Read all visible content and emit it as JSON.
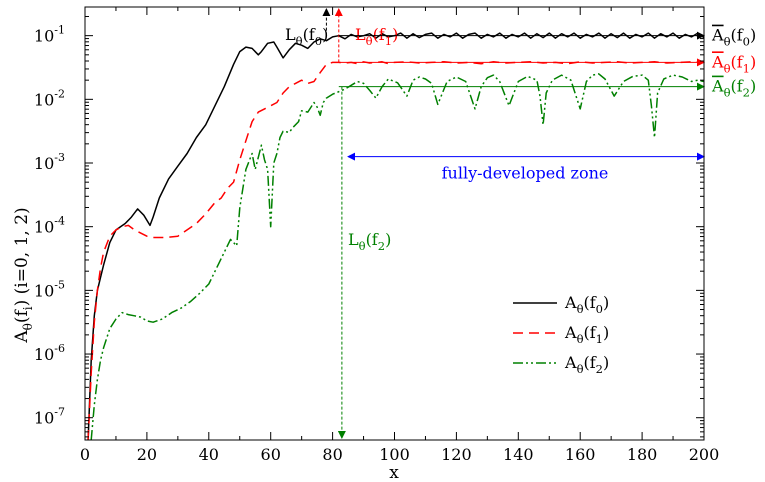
{
  "chart_data": {
    "type": "line",
    "xlabel": "x",
    "ylabel": "A_θ(f_i) (i=0, 1, 2)",
    "xlim": [
      0,
      200
    ],
    "ylim_log10": [
      -7.35,
      -0.55
    ],
    "y_scale": "log",
    "grid": false,
    "legend_position": "lower-right",
    "x_ticks": [
      0,
      20,
      40,
      60,
      80,
      100,
      120,
      140,
      160,
      180,
      200
    ],
    "y_ticks": [
      {
        "exp": -1,
        "label": "10",
        "sup": "-1"
      },
      {
        "exp": -2,
        "label": "10",
        "sup": "-2"
      },
      {
        "exp": -3,
        "label": "10",
        "sup": "-3"
      },
      {
        "exp": -4,
        "label": "10",
        "sup": "-4"
      },
      {
        "exp": -5,
        "label": "10",
        "sup": "-5"
      },
      {
        "exp": -6,
        "label": "10",
        "sup": "-6"
      },
      {
        "exp": -7,
        "label": "10",
        "sup": "-7"
      }
    ],
    "series": [
      {
        "name": "A_θ(f_0)",
        "color": "#000000",
        "dash": "solid",
        "x": [
          1,
          2,
          3,
          4,
          5,
          6,
          8,
          10,
          13,
          15,
          17,
          19,
          21,
          22,
          24,
          27,
          30,
          33,
          36,
          39,
          42,
          45,
          48,
          50,
          52,
          54,
          56,
          57,
          59,
          61,
          62,
          64,
          66,
          68,
          70,
          72,
          74,
          76,
          78,
          80,
          82,
          84,
          86,
          88,
          90,
          92,
          94,
          96,
          98,
          100,
          102,
          104,
          106,
          108,
          110,
          112,
          114,
          116,
          118,
          120,
          122,
          124,
          126,
          128,
          130,
          132,
          134,
          136,
          138,
          140,
          142,
          144,
          146,
          148,
          150,
          152,
          154,
          156,
          158,
          160,
          162,
          164,
          166,
          168,
          170,
          172,
          174,
          176,
          178,
          180,
          182,
          184,
          186,
          188,
          190,
          192,
          194,
          196,
          198,
          200
        ],
        "y_log10": [
          -7.35,
          -6.1,
          -5.4,
          -5.0,
          -4.8,
          -4.6,
          -4.25,
          -4.05,
          -3.95,
          -3.85,
          -3.72,
          -3.82,
          -3.98,
          -3.85,
          -3.55,
          -3.25,
          -3.05,
          -2.85,
          -2.6,
          -2.4,
          -2.1,
          -1.8,
          -1.45,
          -1.25,
          -1.18,
          -1.2,
          -1.3,
          -1.25,
          -1.12,
          -1.1,
          -1.18,
          -1.35,
          -1.22,
          -1.12,
          -1.15,
          -1.2,
          -1.1,
          -1.05,
          -1.08,
          -1.02,
          -1.0,
          -1.05,
          -0.98,
          -1.02,
          -1.0,
          -0.97,
          -1.04,
          -0.97,
          -1.02,
          -1.0,
          -0.96,
          -1.04,
          -0.97,
          -1.03,
          -0.98,
          -0.96,
          -1.04,
          -0.98,
          -1.02,
          -0.96,
          -1.04,
          -0.98,
          -0.96,
          -1.04,
          -0.98,
          -1.02,
          -0.96,
          -1.04,
          -0.98,
          -1.02,
          -0.96,
          -1.04,
          -0.97,
          -1.03,
          -0.96,
          -1.04,
          -0.97,
          -1.02,
          -0.96,
          -1.04,
          -0.98,
          -1.02,
          -0.96,
          -1.04,
          -0.97,
          -1.03,
          -0.96,
          -1.04,
          -0.98,
          -1.02,
          -0.96,
          -1.04,
          -0.97,
          -1.02,
          -0.96,
          -1.04,
          -0.98,
          -1.02,
          -0.96,
          -1.03
        ]
      },
      {
        "name": "A_θ(f_1)",
        "color": "#ff0000",
        "dash": "10,6",
        "x": [
          1,
          2,
          3,
          4,
          5,
          6,
          8,
          10,
          12,
          14,
          16,
          18,
          20,
          22,
          26,
          30,
          33,
          36,
          39,
          42,
          44,
          46,
          48,
          50,
          52,
          54,
          56,
          58,
          60,
          62,
          64,
          66,
          68,
          70,
          72,
          74,
          76,
          78,
          80,
          82,
          84,
          86,
          88,
          90,
          92,
          94,
          96,
          98,
          100,
          104,
          108,
          112,
          116,
          120,
          124,
          128,
          132,
          136,
          140,
          144,
          148,
          152,
          156,
          160,
          164,
          168,
          172,
          176,
          180,
          184,
          188,
          192,
          196,
          200
        ],
        "y_log10": [
          -7.35,
          -6.3,
          -5.5,
          -5.0,
          -4.65,
          -4.4,
          -4.15,
          -4.05,
          -4.0,
          -3.98,
          -4.05,
          -4.1,
          -4.15,
          -4.17,
          -4.17,
          -4.15,
          -4.05,
          -3.95,
          -3.8,
          -3.62,
          -3.55,
          -3.4,
          -3.3,
          -2.95,
          -2.65,
          -2.35,
          -2.2,
          -2.15,
          -2.1,
          -2.05,
          -1.9,
          -1.8,
          -1.75,
          -1.7,
          -1.75,
          -1.72,
          -1.58,
          -1.45,
          -1.42,
          -1.42,
          -1.43,
          -1.42,
          -1.44,
          -1.41,
          -1.43,
          -1.42,
          -1.41,
          -1.44,
          -1.42,
          -1.41,
          -1.43,
          -1.42,
          -1.41,
          -1.43,
          -1.42,
          -1.44,
          -1.41,
          -1.43,
          -1.42,
          -1.41,
          -1.43,
          -1.42,
          -1.44,
          -1.41,
          -1.43,
          -1.42,
          -1.41,
          -1.43,
          -1.42,
          -1.41,
          -1.43,
          -1.42,
          -1.41,
          -1.42
        ]
      },
      {
        "name": "A_θ(f_2)",
        "color": "#008000",
        "dash": "10,3,2,3,2,3",
        "x": [
          2,
          3,
          4,
          5,
          6,
          8,
          10,
          12,
          14,
          16,
          18,
          20,
          22,
          25,
          28,
          31,
          34,
          37,
          40,
          43,
          45,
          47,
          49,
          50,
          52,
          54,
          55,
          57,
          58,
          59,
          60,
          61,
          62,
          63,
          64,
          66,
          67,
          69,
          70,
          72,
          74,
          75,
          76,
          77,
          78,
          80,
          82,
          84,
          86,
          88,
          90,
          92,
          94,
          96,
          98,
          101,
          104,
          106,
          108,
          110,
          112,
          114,
          117,
          120,
          123,
          126,
          128,
          130,
          132,
          134,
          137,
          140,
          143,
          146,
          147,
          148,
          149,
          151,
          154,
          157,
          160,
          162,
          164,
          166,
          168,
          171,
          174,
          177,
          180,
          182,
          183,
          184,
          185,
          187,
          190,
          193,
          196,
          198,
          200
        ],
        "y_log10": [
          -7.35,
          -6.8,
          -6.4,
          -6.1,
          -5.9,
          -5.6,
          -5.45,
          -5.35,
          -5.38,
          -5.4,
          -5.42,
          -5.48,
          -5.5,
          -5.45,
          -5.35,
          -5.28,
          -5.18,
          -5.05,
          -4.9,
          -4.6,
          -4.4,
          -4.2,
          -4.3,
          -3.7,
          -3.1,
          -2.85,
          -3.1,
          -2.72,
          -2.95,
          -3.1,
          -4.0,
          -3.0,
          -2.85,
          -2.6,
          -2.5,
          -2.52,
          -2.45,
          -2.35,
          -2.18,
          -2.2,
          -2.05,
          -2.12,
          -2.25,
          -2.05,
          -1.98,
          -1.92,
          -1.88,
          -1.84,
          -1.78,
          -1.72,
          -1.75,
          -1.86,
          -1.98,
          -1.8,
          -1.68,
          -1.74,
          -1.95,
          -1.7,
          -1.65,
          -1.68,
          -1.75,
          -2.08,
          -1.72,
          -1.65,
          -1.72,
          -2.15,
          -1.8,
          -1.66,
          -1.62,
          -1.72,
          -2.1,
          -1.72,
          -1.64,
          -1.7,
          -1.95,
          -2.4,
          -1.9,
          -1.7,
          -1.62,
          -1.7,
          -2.15,
          -1.72,
          -1.62,
          -1.6,
          -1.68,
          -1.95,
          -1.72,
          -1.64,
          -1.62,
          -1.7,
          -2.1,
          -2.6,
          -1.9,
          -1.68,
          -1.62,
          -1.65,
          -1.72,
          -1.7,
          -1.72
        ]
      }
    ],
    "annotations": {
      "L0": {
        "x": 78,
        "label": "L",
        "sub": "θ",
        "tail": "(f",
        "tail_sub": "0",
        "close": ")",
        "color": "#000000"
      },
      "L1": {
        "x": 82,
        "label": "L",
        "sub": "θ",
        "tail": "(f",
        "tail_sub": "1",
        "close": ")",
        "color": "#ff0000"
      },
      "L2": {
        "x": 83,
        "label": "L",
        "sub": "θ",
        "tail": "(f",
        "tail_sub": "2",
        "close": ")",
        "color": "#008000"
      },
      "mean0": {
        "y_log10": -1.0,
        "label": "A",
        "sub": "θ",
        "tail": "(f",
        "tail_sub": "0",
        "close": ")",
        "color": "#000000"
      },
      "mean1": {
        "y_log10": -1.42,
        "label": "A",
        "sub": "θ",
        "tail": "(f",
        "tail_sub": "1",
        "close": ")",
        "color": "#ff0000"
      },
      "mean2": {
        "y_log10": -1.8,
        "label": "A",
        "sub": "θ",
        "tail": "(f",
        "tail_sub": "2",
        "close": ")",
        "color": "#008000"
      },
      "zone": {
        "x_start": 85,
        "x_end": 200,
        "y_log10": -2.9,
        "label": "fully-developed zone",
        "color": "#0000ff"
      }
    }
  },
  "legend": [
    {
      "label": "A",
      "sub": "θ",
      "tail": "(f",
      "tail_sub": "0",
      "close": ")"
    },
    {
      "label": "A",
      "sub": "θ",
      "tail": "(f",
      "tail_sub": "1",
      "close": ")"
    },
    {
      "label": "A",
      "sub": "θ",
      "tail": "(f",
      "tail_sub": "2",
      "close": ")"
    }
  ],
  "axis_text": {
    "ylabel_main": "A",
    "ylabel_sub1": "θ",
    "ylabel_mid": "(f",
    "ylabel_sub2": "i",
    "ylabel_end": ") (i=0, 1, 2)",
    "xlabel": "x"
  }
}
